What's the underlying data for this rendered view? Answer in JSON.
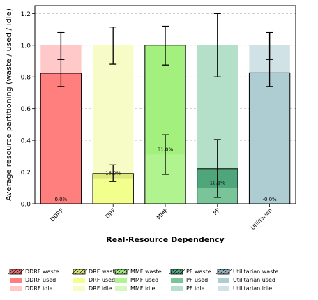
{
  "chart_data": {
    "type": "bar",
    "title": "",
    "xlabel": "Real-Resource Dependency",
    "ylabel": "Average resource partitioning (waste / used / idle)",
    "ylim": [
      0,
      1.25
    ],
    "yticks": [
      "0.0",
      "0.2",
      "0.4",
      "0.6",
      "0.8",
      "1.0",
      "1.2"
    ],
    "ytick_values": [
      0,
      0.2,
      0.4,
      0.6,
      0.8,
      1.0,
      1.2
    ],
    "grid": true,
    "legend_position": "bottom",
    "categories": [
      "DDRF",
      "DRF",
      "MMF",
      "PF",
      "Utilitarian"
    ],
    "stack_order": [
      "used",
      "waste",
      "idle"
    ],
    "series": [
      {
        "name": "used",
        "values": [
          0.823,
          0.16,
          0.31,
          0.101,
          0.826
        ]
      },
      {
        "name": "waste",
        "values": [
          0.0,
          0.03,
          0.69,
          0.12,
          0.0
        ]
      },
      {
        "name": "idle",
        "values": [
          0.177,
          0.81,
          0.0,
          0.779,
          0.174
        ]
      }
    ],
    "bar_total_outline": [
      0.823,
      0.19,
      1.0,
      0.221,
      0.826
    ],
    "data_labels": [
      "0.0%",
      "16.0%",
      "31.0%",
      "10.1%",
      "-0.0%"
    ],
    "data_label_y": [
      0.03,
      0.195,
      0.345,
      0.135,
      0.03
    ],
    "error_bars": [
      {
        "center": 0.823,
        "low": 0.74,
        "high": 1.08
      },
      {
        "center": 0.19,
        "low": 0.14,
        "high": 0.245
      },
      {
        "center": 0.31,
        "low": 0.185,
        "high": 0.435
      },
      {
        "center": 0.221,
        "low": 0.04,
        "high": 0.405
      },
      {
        "center": 0.826,
        "low": 0.74,
        "high": 1.08
      }
    ],
    "error_bars_total": [
      {
        "center": 1.0,
        "low": 0.91,
        "high": 1.08
      },
      {
        "center": 1.0,
        "low": 0.88,
        "high": 1.115
      },
      {
        "center": 1.0,
        "low": 0.875,
        "high": 1.12
      },
      {
        "center": 1.0,
        "low": 0.8,
        "high": 1.2
      },
      {
        "center": 1.0,
        "low": 0.91,
        "high": 1.08
      }
    ],
    "colors": {
      "DDRF": {
        "waste": "#e87070",
        "used": "#ff7f7f",
        "idle": "#ffc9c9"
      },
      "DRF": {
        "waste": "#dfe87a",
        "used": "#f2ff8c",
        "idle": "#f7fcc6"
      },
      "MMF": {
        "waste": "#a3f07f",
        "used": "#b0f38f",
        "idle": "#d4f8c0"
      },
      "PF": {
        "waste": "#4fa67a",
        "used": "#7ac49a",
        "idle": "#b4dfc8"
      },
      "Utilitarian": {
        "waste": "#8fb8c0",
        "used": "#aecdd2",
        "idle": "#d0e2e5"
      }
    },
    "legend": [
      [
        "DDRF waste",
        "DDRF used",
        "DDRF idle"
      ],
      [
        "DRF waste",
        "DRF used",
        "DRF idle"
      ],
      [
        "MMF waste",
        "MMF used",
        "MMF idle"
      ],
      [
        "PF waste",
        "PF used",
        "PF idle"
      ],
      [
        "Utilitarian waste",
        "Utilitarian used",
        "Utilitarian idle"
      ]
    ]
  }
}
